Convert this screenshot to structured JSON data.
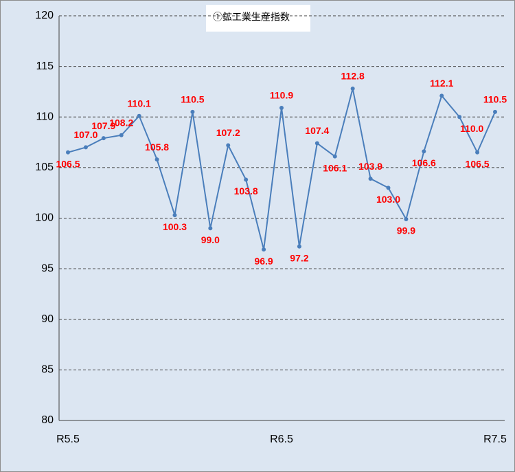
{
  "chart_data": {
    "type": "line",
    "title": "①鉱工業生産指数",
    "categories": [
      "R5.5",
      null,
      null,
      null,
      null,
      null,
      null,
      null,
      null,
      null,
      null,
      null,
      "R6.5",
      null,
      null,
      null,
      null,
      null,
      null,
      null,
      null,
      null,
      null,
      null,
      "R7.5"
    ],
    "series": [
      {
        "color": "#4a7ebb",
        "label_color": "#ff0000",
        "values": [
          106.5,
          107.0,
          107.9,
          108.2,
          110.1,
          105.8,
          100.3,
          110.5,
          99.0,
          107.2,
          103.8,
          96.9,
          110.9,
          97.2,
          107.4,
          106.1,
          112.8,
          103.9,
          103.0,
          99.9,
          106.6,
          112.1,
          110.0,
          106.5,
          110.5
        ],
        "value_labels": [
          "106.5",
          "107.0",
          "107.9",
          "108.2",
          "110.1",
          "105.8",
          "100.3",
          "110.5",
          "99.0",
          "107.2",
          "103.8",
          "96.9",
          "110.9",
          "97.2",
          "107.4",
          "106.1",
          "112.8",
          "103.9",
          "103.0",
          "99.9",
          "106.6",
          "112.1",
          "110.0",
          "106.5",
          "110.5"
        ]
      }
    ],
    "ylim": [
      80,
      120
    ],
    "yticks": [
      80,
      85,
      90,
      95,
      100,
      105,
      110,
      115,
      120
    ],
    "grid": true
  }
}
